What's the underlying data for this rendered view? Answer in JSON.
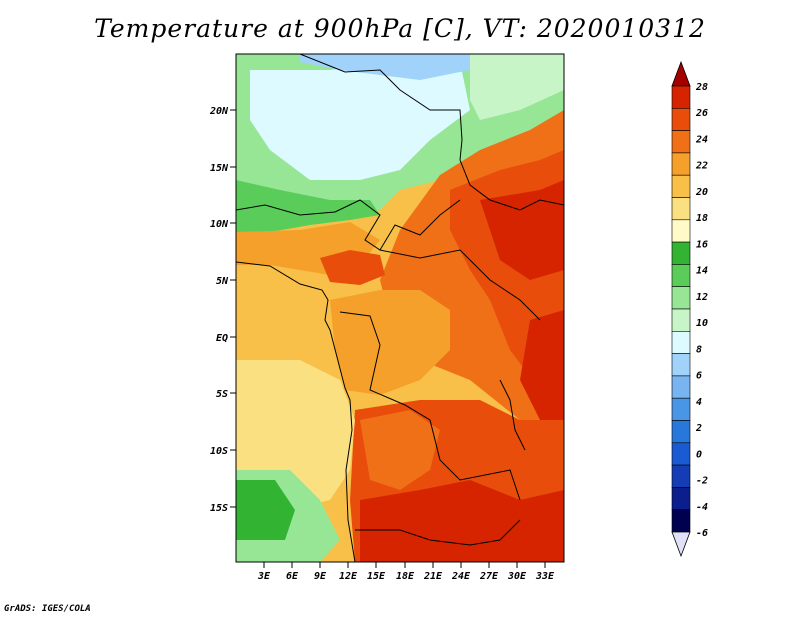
{
  "title": "Temperature at 900hPa [C], VT: 2020010312",
  "credit": "GrADS: IGES/COLA",
  "map": {
    "lon_range": [
      0,
      35
    ],
    "lat_range": [
      -20,
      25
    ],
    "lat_labels": [
      "20N",
      "15N",
      "10N",
      "5N",
      "EQ",
      "5S",
      "10S",
      "15S"
    ],
    "lon_labels": [
      "3E",
      "6E",
      "9E",
      "12E",
      "15E",
      "18E",
      "21E",
      "24E",
      "27E",
      "30E",
      "33E"
    ]
  },
  "colorbar": {
    "labels": [
      "28",
      "26",
      "24",
      "22",
      "20",
      "18",
      "16",
      "14",
      "12",
      "10",
      "8",
      "6",
      "4",
      "2",
      "0",
      "-2",
      "-4",
      "-6"
    ],
    "colors": [
      "#a50000",
      "#d72400",
      "#e84d0c",
      "#f07018",
      "#f5a02a",
      "#f8c048",
      "#fae080",
      "#fffac8",
      "#32b432",
      "#5acc5a",
      "#96e696",
      "#c8f5c8",
      "#dcfaff",
      "#a0d2fa",
      "#78b4f0",
      "#4a96e6",
      "#2878dc",
      "#1a5ad2",
      "#143cb4",
      "#0a1e8c",
      "#000050",
      "#e0e0f8"
    ]
  }
}
